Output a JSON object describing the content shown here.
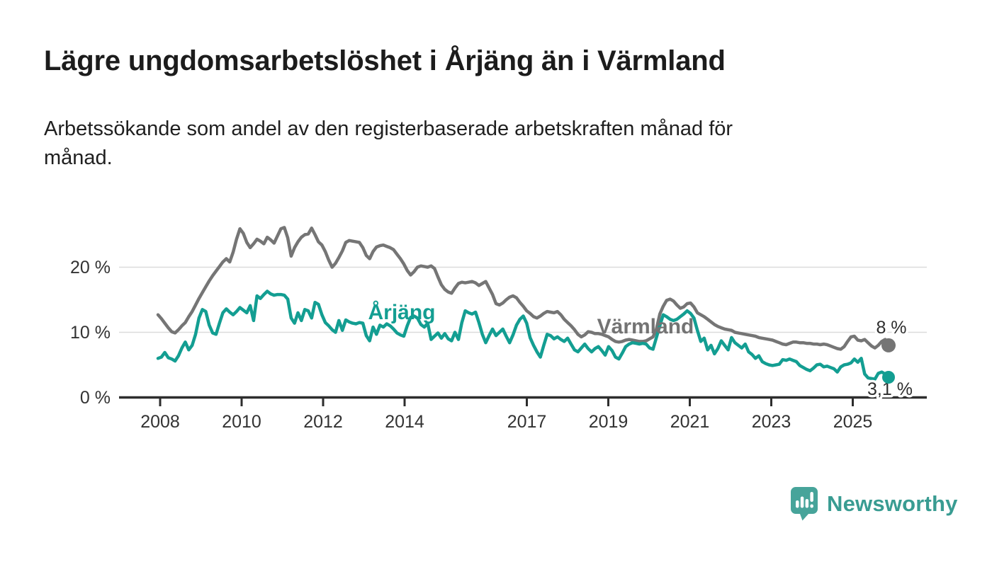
{
  "header": {
    "title": "Lägre ungdomsarbetslöshet i Årjäng än i Värmland",
    "subtitle_lines": [
      "Arbetssökande som andel av den registerbaserade arbetskraften månad för",
      "månad."
    ]
  },
  "chart_data": {
    "type": "line",
    "title": "Lägre ungdomsarbetslöshet i Årjäng än i Värmland",
    "subtitle": "Arbetssökande som andel av den registerbaserade arbetskraften månad för månad.",
    "x_unit": "month",
    "x_start": "2008-01",
    "x_end": "2025-11",
    "x_tick_labels": [
      "2008",
      "2010",
      "2012",
      "2014",
      "2017",
      "2019",
      "2021",
      "2023",
      "2025"
    ],
    "y_ticks": [
      {
        "label": "0 %",
        "value": 0
      },
      {
        "label": "10 %",
        "value": 10
      },
      {
        "label": "20 %",
        "value": 20
      }
    ],
    "ylim": [
      0,
      28
    ],
    "grid": "horizontal",
    "legend_position": "inline-labels",
    "series": [
      {
        "name": "Värmland",
        "color": "#757575",
        "label_color": "#737373",
        "end_label": "8 %",
        "end_value": 8.0,
        "values": [
          12.7,
          12.1,
          11.4,
          10.7,
          10.1,
          9.9,
          10.4,
          11.0,
          11.5,
          12.4,
          13.2,
          14.2,
          15.2,
          16.1,
          17.0,
          17.9,
          18.7,
          19.4,
          20.1,
          20.8,
          21.3,
          20.8,
          22.3,
          24.3,
          25.9,
          25.2,
          23.8,
          23.0,
          23.6,
          24.3,
          24.0,
          23.6,
          24.6,
          24.2,
          23.7,
          24.8,
          25.9,
          26.1,
          24.5,
          21.7,
          23.0,
          23.9,
          24.6,
          25.0,
          25.1,
          26.0,
          25.0,
          23.9,
          23.4,
          22.4,
          21.1,
          20.0,
          20.6,
          21.5,
          22.5,
          23.8,
          24.1,
          24.0,
          23.9,
          23.8,
          23.0,
          21.8,
          21.3,
          22.4,
          23.1,
          23.3,
          23.4,
          23.2,
          23.0,
          22.7,
          22.0,
          21.3,
          20.5,
          19.5,
          18.8,
          19.3,
          20.0,
          20.2,
          20.1,
          20.0,
          20.2,
          19.8,
          18.5,
          17.3,
          16.6,
          16.2,
          16.0,
          16.8,
          17.5,
          17.7,
          17.6,
          17.7,
          17.8,
          17.6,
          17.2,
          17.5,
          17.8,
          16.8,
          15.8,
          14.4,
          14.2,
          14.5,
          15.0,
          15.4,
          15.6,
          15.3,
          14.6,
          14.0,
          13.3,
          12.9,
          12.4,
          12.2,
          12.5,
          12.9,
          13.2,
          13.1,
          13.0,
          13.2,
          12.7,
          12.0,
          11.5,
          11.0,
          10.4,
          9.7,
          9.3,
          9.6,
          10.1,
          10.0,
          9.8,
          9.8,
          9.7,
          9.5,
          9.3,
          8.9,
          8.6,
          8.5,
          8.6,
          8.8,
          8.9,
          8.8,
          8.7,
          8.6,
          8.6,
          8.7,
          9.0,
          9.3,
          10.5,
          12.8,
          14.0,
          14.9,
          15.1,
          14.8,
          14.2,
          13.7,
          13.9,
          14.4,
          14.5,
          13.9,
          13.0,
          12.7,
          12.4,
          12.0,
          11.6,
          11.2,
          10.9,
          10.7,
          10.5,
          10.4,
          10.3,
          10.0,
          9.9,
          9.8,
          9.7,
          9.6,
          9.5,
          9.4,
          9.2,
          9.1,
          9.0,
          8.9,
          8.8,
          8.6,
          8.4,
          8.2,
          8.1,
          8.3,
          8.5,
          8.5,
          8.4,
          8.4,
          8.3,
          8.3,
          8.2,
          8.2,
          8.1,
          8.2,
          8.1,
          7.9,
          7.7,
          7.5,
          7.4,
          7.8,
          8.6,
          9.3,
          9.4,
          8.8,
          8.7,
          8.9,
          8.4,
          7.9,
          7.6,
          8.0,
          8.6,
          8.9,
          8.0
        ]
      },
      {
        "name": "Årjäng",
        "color": "#139e92",
        "label_color": "#139e92",
        "end_label": "3,1 %",
        "end_value": 3.1,
        "values": [
          6.0,
          6.2,
          6.9,
          6.1,
          5.9,
          5.6,
          6.4,
          7.6,
          8.5,
          7.3,
          8.0,
          9.7,
          12.2,
          13.5,
          13.2,
          11.1,
          9.9,
          9.7,
          11.4,
          13.0,
          13.6,
          13.1,
          12.7,
          13.2,
          13.8,
          13.4,
          13.0,
          14.1,
          11.8,
          15.6,
          15.2,
          15.8,
          16.3,
          15.9,
          15.7,
          15.8,
          15.8,
          15.7,
          15.1,
          12.2,
          11.4,
          13.0,
          11.8,
          13.5,
          13.3,
          12.2,
          14.6,
          14.3,
          12.7,
          11.5,
          11.0,
          10.4,
          10.0,
          11.8,
          10.3,
          11.9,
          11.6,
          11.4,
          11.3,
          11.5,
          11.4,
          9.5,
          8.7,
          10.8,
          9.7,
          11.1,
          10.8,
          11.3,
          11.0,
          10.5,
          9.9,
          9.6,
          9.4,
          11.0,
          12.3,
          12.5,
          12.2,
          11.2,
          10.8,
          11.4,
          8.9,
          9.4,
          9.9,
          9.1,
          9.8,
          9.0,
          8.7,
          10.0,
          8.9,
          11.5,
          13.3,
          13.0,
          12.8,
          13.1,
          11.5,
          9.7,
          8.4,
          9.5,
          10.5,
          9.5,
          10.0,
          10.5,
          9.4,
          8.4,
          9.6,
          11.1,
          12.0,
          12.5,
          11.4,
          9.2,
          8.0,
          7.0,
          6.2,
          8.0,
          9.7,
          9.5,
          9.0,
          9.3,
          8.9,
          8.6,
          9.1,
          8.2,
          7.3,
          7.0,
          7.6,
          8.2,
          7.5,
          7.0,
          7.5,
          7.8,
          7.2,
          6.5,
          7.8,
          7.2,
          6.2,
          5.9,
          6.8,
          7.8,
          8.2,
          8.4,
          8.3,
          8.2,
          8.3,
          8.2,
          7.6,
          7.4,
          9.2,
          11.0,
          12.7,
          12.4,
          12.0,
          11.8,
          12.0,
          12.4,
          12.8,
          13.3,
          12.9,
          12.2,
          10.3,
          8.6,
          9.1,
          7.3,
          8.0,
          6.7,
          7.5,
          8.7,
          8.0,
          7.3,
          9.2,
          8.4,
          8.0,
          7.6,
          8.2,
          7.0,
          6.6,
          6.0,
          6.4,
          5.5,
          5.2,
          5.0,
          4.9,
          5.0,
          5.1,
          5.8,
          5.7,
          5.9,
          5.7,
          5.5,
          4.9,
          4.6,
          4.3,
          4.1,
          4.5,
          5.0,
          5.1,
          4.7,
          4.8,
          4.6,
          4.4,
          3.9,
          4.7,
          5.0,
          5.1,
          5.3,
          5.9,
          5.4,
          6.0,
          3.6,
          3.0,
          2.9,
          2.8,
          3.7,
          3.9,
          3.6,
          3.1
        ]
      }
    ]
  },
  "colors": {
    "axis": "#2d2d2d",
    "grid": "#dbdbdb",
    "tick_text": "#333333",
    "background": "#ffffff"
  },
  "footer": {
    "brand": "Newsworthy",
    "brand_color": "#399c92",
    "logo_color": "#47a49a"
  }
}
